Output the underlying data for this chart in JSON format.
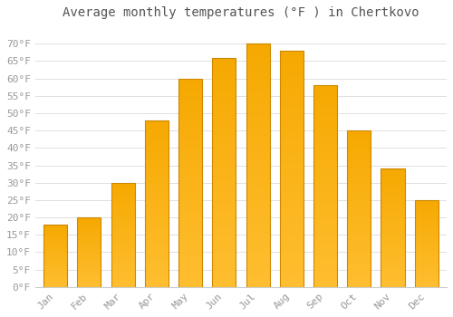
{
  "title": "Average monthly temperatures (°F ) in Chertkovo",
  "months": [
    "Jan",
    "Feb",
    "Mar",
    "Apr",
    "May",
    "Jun",
    "Jul",
    "Aug",
    "Sep",
    "Oct",
    "Nov",
    "Dec"
  ],
  "values": [
    18,
    20,
    30,
    48,
    60,
    66,
    70,
    68,
    58,
    45,
    34,
    25
  ],
  "bar_color_bottom": "#FFBE30",
  "bar_color_top": "#F5A800",
  "bar_edge_color": "#CC8800",
  "background_color": "#FFFFFF",
  "grid_color": "#E0E0E0",
  "text_color": "#999999",
  "title_color": "#555555",
  "ylim": [
    0,
    75
  ],
  "yticks": [
    0,
    5,
    10,
    15,
    20,
    25,
    30,
    35,
    40,
    45,
    50,
    55,
    60,
    65,
    70
  ],
  "ytick_labels": [
    "0°F",
    "5°F",
    "10°F",
    "15°F",
    "20°F",
    "25°F",
    "30°F",
    "35°F",
    "40°F",
    "45°F",
    "50°F",
    "55°F",
    "60°F",
    "65°F",
    "70°F"
  ],
  "title_fontsize": 10,
  "tick_fontsize": 8,
  "figsize": [
    5.0,
    3.5
  ],
  "dpi": 100,
  "bar_width": 0.7
}
